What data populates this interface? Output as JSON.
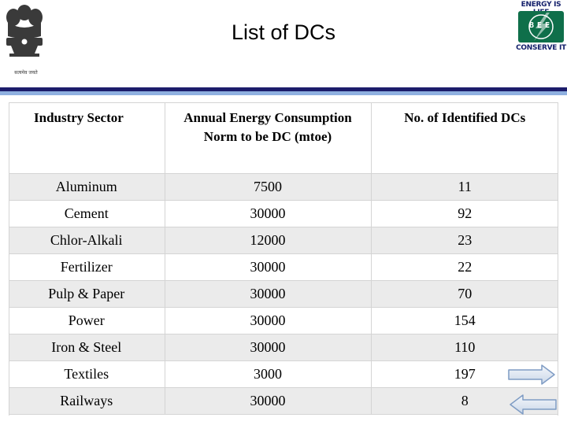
{
  "slide": {
    "title": "List of DCs",
    "emblem_caption": "सत्यमेव जयते",
    "logo": {
      "top_text": "ENERGY IS LIFE",
      "middle_text": "BEE",
      "bottom_text": "CONSERVE IT"
    }
  },
  "table": {
    "headers": [
      "Industry Sector",
      "Annual Energy Consumption Norm to be DC (mtoe)",
      "No. of Identified DCs"
    ],
    "rows": [
      [
        "Aluminum",
        "7500",
        "11"
      ],
      [
        "Cement",
        "30000",
        "92"
      ],
      [
        "Chlor-Alkali",
        "12000",
        "23"
      ],
      [
        "Fertilizer",
        "30000",
        "22"
      ],
      [
        "Pulp & Paper",
        "30000",
        "70"
      ],
      [
        "Power",
        "30000",
        "154"
      ],
      [
        "Iron & Steel",
        "30000",
        "110"
      ],
      [
        "Textiles",
        "3000",
        "197"
      ],
      [
        "Railways",
        "30000",
        "8"
      ]
    ]
  },
  "navigation": {
    "next_icon": "arrow-right-icon",
    "prev_icon": "arrow-left-icon"
  },
  "colors": {
    "header_bar_dark": "#1c1c6b",
    "header_bar_light": "#8fb0e0",
    "logo_green": "#0f6f4a",
    "logo_navy": "#14206b",
    "row_stripe": "#ebebeb"
  }
}
